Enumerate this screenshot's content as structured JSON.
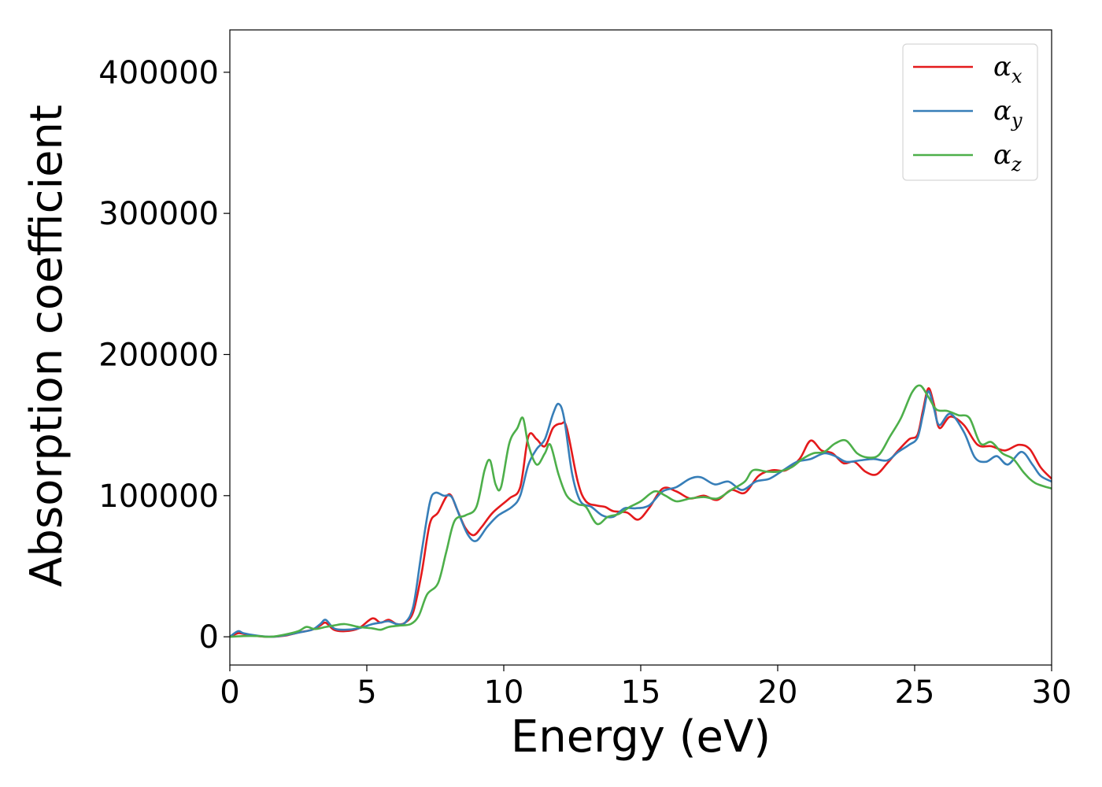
{
  "chart_data": {
    "type": "line",
    "title": "",
    "xlabel": "Energy (eV)",
    "ylabel": "Absorption coefficient",
    "xlim": [
      0,
      30
    ],
    "ylim": [
      -20000,
      430000
    ],
    "x_ticks": [
      0,
      5,
      10,
      15,
      20,
      25,
      30
    ],
    "y_ticks": [
      0,
      100000,
      200000,
      300000,
      400000
    ],
    "grid": false,
    "legend_position": "top-right",
    "series": [
      {
        "name": "αx",
        "symbol": "α",
        "subscript": "x",
        "color": "#e41a1c",
        "points": [
          [
            0,
            0
          ],
          [
            0.3,
            2500
          ],
          [
            0.5,
            2000
          ],
          [
            1,
            500
          ],
          [
            1.5,
            0
          ],
          [
            2,
            800
          ],
          [
            2.5,
            3000
          ],
          [
            3,
            5000
          ],
          [
            3.3,
            8000
          ],
          [
            3.5,
            10000
          ],
          [
            3.8,
            5000
          ],
          [
            4.2,
            4000
          ],
          [
            4.7,
            6000
          ],
          [
            5.2,
            13000
          ],
          [
            5.5,
            10000
          ],
          [
            5.8,
            12000
          ],
          [
            6.1,
            9000
          ],
          [
            6.4,
            10000
          ],
          [
            6.7,
            18000
          ],
          [
            7,
            45000
          ],
          [
            7.3,
            80000
          ],
          [
            7.6,
            88000
          ],
          [
            8,
            101000
          ],
          [
            8.3,
            90000
          ],
          [
            8.6,
            77000
          ],
          [
            8.9,
            72000
          ],
          [
            9.2,
            78000
          ],
          [
            9.6,
            88000
          ],
          [
            10.2,
            98000
          ],
          [
            10.6,
            106000
          ],
          [
            10.9,
            142000
          ],
          [
            11.2,
            140000
          ],
          [
            11.5,
            135000
          ],
          [
            11.8,
            148000
          ],
          [
            12.1,
            151000
          ],
          [
            12.3,
            148000
          ],
          [
            12.7,
            110000
          ],
          [
            13,
            96000
          ],
          [
            13.4,
            93000
          ],
          [
            13.7,
            92000
          ],
          [
            14,
            89000
          ],
          [
            14.5,
            88000
          ],
          [
            14.9,
            83000
          ],
          [
            15.3,
            91000
          ],
          [
            15.8,
            105000
          ],
          [
            16.3,
            103000
          ],
          [
            16.8,
            98000
          ],
          [
            17.3,
            100000
          ],
          [
            17.8,
            97000
          ],
          [
            18.3,
            104000
          ],
          [
            18.8,
            102000
          ],
          [
            19.3,
            114000
          ],
          [
            19.8,
            118000
          ],
          [
            20.3,
            118000
          ],
          [
            20.8,
            126000
          ],
          [
            21.2,
            139000
          ],
          [
            21.6,
            132000
          ],
          [
            22,
            130000
          ],
          [
            22.4,
            123000
          ],
          [
            22.8,
            124000
          ],
          [
            23.2,
            117000
          ],
          [
            23.6,
            115000
          ],
          [
            24,
            123000
          ],
          [
            24.4,
            132000
          ],
          [
            24.8,
            140000
          ],
          [
            25.1,
            143000
          ],
          [
            25.3,
            160000
          ],
          [
            25.5,
            176000
          ],
          [
            25.7,
            165000
          ],
          [
            25.9,
            148000
          ],
          [
            26.3,
            156000
          ],
          [
            26.8,
            150000
          ],
          [
            27.3,
            136000
          ],
          [
            27.8,
            135000
          ],
          [
            28.3,
            132000
          ],
          [
            28.8,
            136000
          ],
          [
            29.2,
            133000
          ],
          [
            29.6,
            120000
          ],
          [
            30,
            112000
          ]
        ]
      },
      {
        "name": "αy",
        "symbol": "α",
        "subscript": "y",
        "color": "#377eb8",
        "points": [
          [
            0,
            0
          ],
          [
            0.3,
            4000
          ],
          [
            0.5,
            2500
          ],
          [
            1,
            800
          ],
          [
            1.5,
            0
          ],
          [
            2,
            1000
          ],
          [
            2.5,
            3000
          ],
          [
            3,
            5000
          ],
          [
            3.3,
            9000
          ],
          [
            3.5,
            12000
          ],
          [
            3.8,
            6000
          ],
          [
            4.2,
            5000
          ],
          [
            4.7,
            6000
          ],
          [
            5.2,
            9000
          ],
          [
            5.5,
            10000
          ],
          [
            5.8,
            11000
          ],
          [
            6.1,
            9000
          ],
          [
            6.4,
            10000
          ],
          [
            6.7,
            22000
          ],
          [
            7,
            60000
          ],
          [
            7.3,
            95000
          ],
          [
            7.5,
            102000
          ],
          [
            7.8,
            100000
          ],
          [
            8.1,
            99000
          ],
          [
            8.4,
            85000
          ],
          [
            8.7,
            72000
          ],
          [
            9,
            68000
          ],
          [
            9.4,
            78000
          ],
          [
            9.8,
            86000
          ],
          [
            10.3,
            92000
          ],
          [
            10.6,
            100000
          ],
          [
            10.9,
            122000
          ],
          [
            11.2,
            133000
          ],
          [
            11.5,
            140000
          ],
          [
            11.8,
            158000
          ],
          [
            12,
            165000
          ],
          [
            12.2,
            155000
          ],
          [
            12.5,
            115000
          ],
          [
            12.8,
            96000
          ],
          [
            13.2,
            92000
          ],
          [
            13.6,
            86000
          ],
          [
            14,
            85000
          ],
          [
            14.4,
            91000
          ],
          [
            14.8,
            91000
          ],
          [
            15.3,
            93000
          ],
          [
            15.8,
            103000
          ],
          [
            16.3,
            106000
          ],
          [
            16.8,
            112000
          ],
          [
            17.2,
            113000
          ],
          [
            17.7,
            108000
          ],
          [
            18.2,
            110000
          ],
          [
            18.7,
            104000
          ],
          [
            19.2,
            110000
          ],
          [
            19.7,
            112000
          ],
          [
            20.2,
            118000
          ],
          [
            20.7,
            124000
          ],
          [
            21.2,
            126000
          ],
          [
            21.7,
            130000
          ],
          [
            22.1,
            128000
          ],
          [
            22.5,
            124000
          ],
          [
            23,
            125000
          ],
          [
            23.5,
            126000
          ],
          [
            24,
            125000
          ],
          [
            24.4,
            131000
          ],
          [
            24.8,
            136000
          ],
          [
            25.1,
            141000
          ],
          [
            25.3,
            157000
          ],
          [
            25.5,
            174000
          ],
          [
            25.7,
            162000
          ],
          [
            25.9,
            150000
          ],
          [
            26.3,
            158000
          ],
          [
            26.8,
            145000
          ],
          [
            27.2,
            127000
          ],
          [
            27.6,
            124000
          ],
          [
            28,
            128000
          ],
          [
            28.4,
            122000
          ],
          [
            28.9,
            131000
          ],
          [
            29.3,
            122000
          ],
          [
            29.6,
            114000
          ],
          [
            30,
            110000
          ]
        ]
      },
      {
        "name": "αz",
        "symbol": "α",
        "subscript": "z",
        "color": "#4daf4a",
        "points": [
          [
            0,
            0
          ],
          [
            0.5,
            500
          ],
          [
            1,
            500
          ],
          [
            1.5,
            0
          ],
          [
            2,
            1500
          ],
          [
            2.5,
            4000
          ],
          [
            2.8,
            7000
          ],
          [
            3.1,
            5500
          ],
          [
            3.5,
            7000
          ],
          [
            3.8,
            8000
          ],
          [
            4.2,
            9000
          ],
          [
            4.7,
            7000
          ],
          [
            5.2,
            6000
          ],
          [
            5.5,
            5000
          ],
          [
            5.8,
            7000
          ],
          [
            6.2,
            8000
          ],
          [
            6.6,
            9000
          ],
          [
            6.9,
            15000
          ],
          [
            7.2,
            30000
          ],
          [
            7.6,
            38000
          ],
          [
            7.9,
            60000
          ],
          [
            8.2,
            82000
          ],
          [
            8.6,
            86000
          ],
          [
            9,
            92000
          ],
          [
            9.3,
            118000
          ],
          [
            9.5,
            125000
          ],
          [
            9.7,
            108000
          ],
          [
            9.9,
            106000
          ],
          [
            10.2,
            137000
          ],
          [
            10.5,
            148000
          ],
          [
            10.7,
            155000
          ],
          [
            10.9,
            136000
          ],
          [
            11.2,
            122000
          ],
          [
            11.5,
            130000
          ],
          [
            11.7,
            136000
          ],
          [
            12,
            115000
          ],
          [
            12.3,
            100000
          ],
          [
            12.7,
            94000
          ],
          [
            13,
            92000
          ],
          [
            13.4,
            80000
          ],
          [
            13.8,
            85000
          ],
          [
            14.2,
            87000
          ],
          [
            14.6,
            92000
          ],
          [
            15,
            96000
          ],
          [
            15.5,
            103000
          ],
          [
            15.9,
            100000
          ],
          [
            16.3,
            96000
          ],
          [
            16.8,
            98000
          ],
          [
            17.3,
            99000
          ],
          [
            17.8,
            98000
          ],
          [
            18.3,
            104000
          ],
          [
            18.8,
            110000
          ],
          [
            19.1,
            118000
          ],
          [
            19.6,
            117000
          ],
          [
            20,
            117000
          ],
          [
            20.5,
            120000
          ],
          [
            20.9,
            126000
          ],
          [
            21.3,
            130000
          ],
          [
            21.7,
            131000
          ],
          [
            22.1,
            137000
          ],
          [
            22.5,
            139000
          ],
          [
            22.9,
            130000
          ],
          [
            23.3,
            127000
          ],
          [
            23.7,
            129000
          ],
          [
            24.1,
            142000
          ],
          [
            24.5,
            155000
          ],
          [
            24.9,
            173000
          ],
          [
            25.2,
            178000
          ],
          [
            25.5,
            170000
          ],
          [
            25.8,
            161000
          ],
          [
            26.2,
            160000
          ],
          [
            26.6,
            157000
          ],
          [
            27,
            155000
          ],
          [
            27.4,
            137000
          ],
          [
            27.8,
            138000
          ],
          [
            28.2,
            130000
          ],
          [
            28.6,
            126000
          ],
          [
            29,
            116000
          ],
          [
            29.4,
            109000
          ],
          [
            30,
            105000
          ]
        ]
      }
    ]
  }
}
